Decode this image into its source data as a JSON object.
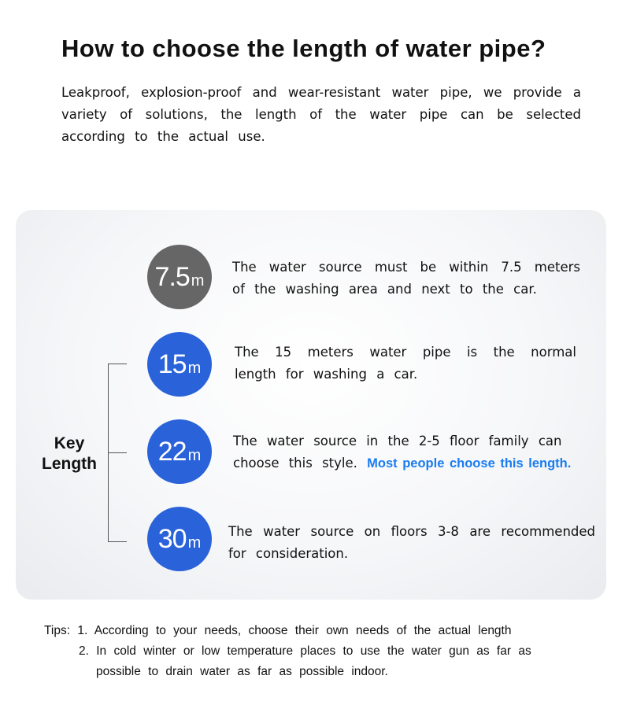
{
  "title": "How to choose the length of water pipe?",
  "intro": "Leakproof, explosion-proof and wear-resistant water pipe, we provide a variety of solutions, the length of the water pipe can be selected according to the actual use.",
  "key_label": {
    "line1": "Key",
    "line2": "Length"
  },
  "colors": {
    "gray_circle": "#666666",
    "blue_circle": "#2a62d9",
    "highlight": "#1a7cf0"
  },
  "options": [
    {
      "value": "7.5",
      "unit": "m",
      "text": "The water source must be within 7.5 meters of the washing area and next to the car.",
      "highlight": ""
    },
    {
      "value": "15",
      "unit": "m",
      "text": "The 15 meters water pipe is the normal length for washing a car.",
      "highlight": ""
    },
    {
      "value": "22",
      "unit": "m",
      "text": "The water source in the 2-5 floor family can choose this style.",
      "highlight": "Most people choose this length."
    },
    {
      "value": "30",
      "unit": "m",
      "text": "The water source on floors 3-8 are recommended for consideration.",
      "highlight": ""
    }
  ],
  "tips": {
    "label": "Tips:",
    "item1": "1. According to your needs, choose their own needs of the actual length",
    "item2": "2. In cold winter or low temperature places to use the water gun as far as",
    "item2_cont": "possible to drain water as far as possible indoor."
  }
}
